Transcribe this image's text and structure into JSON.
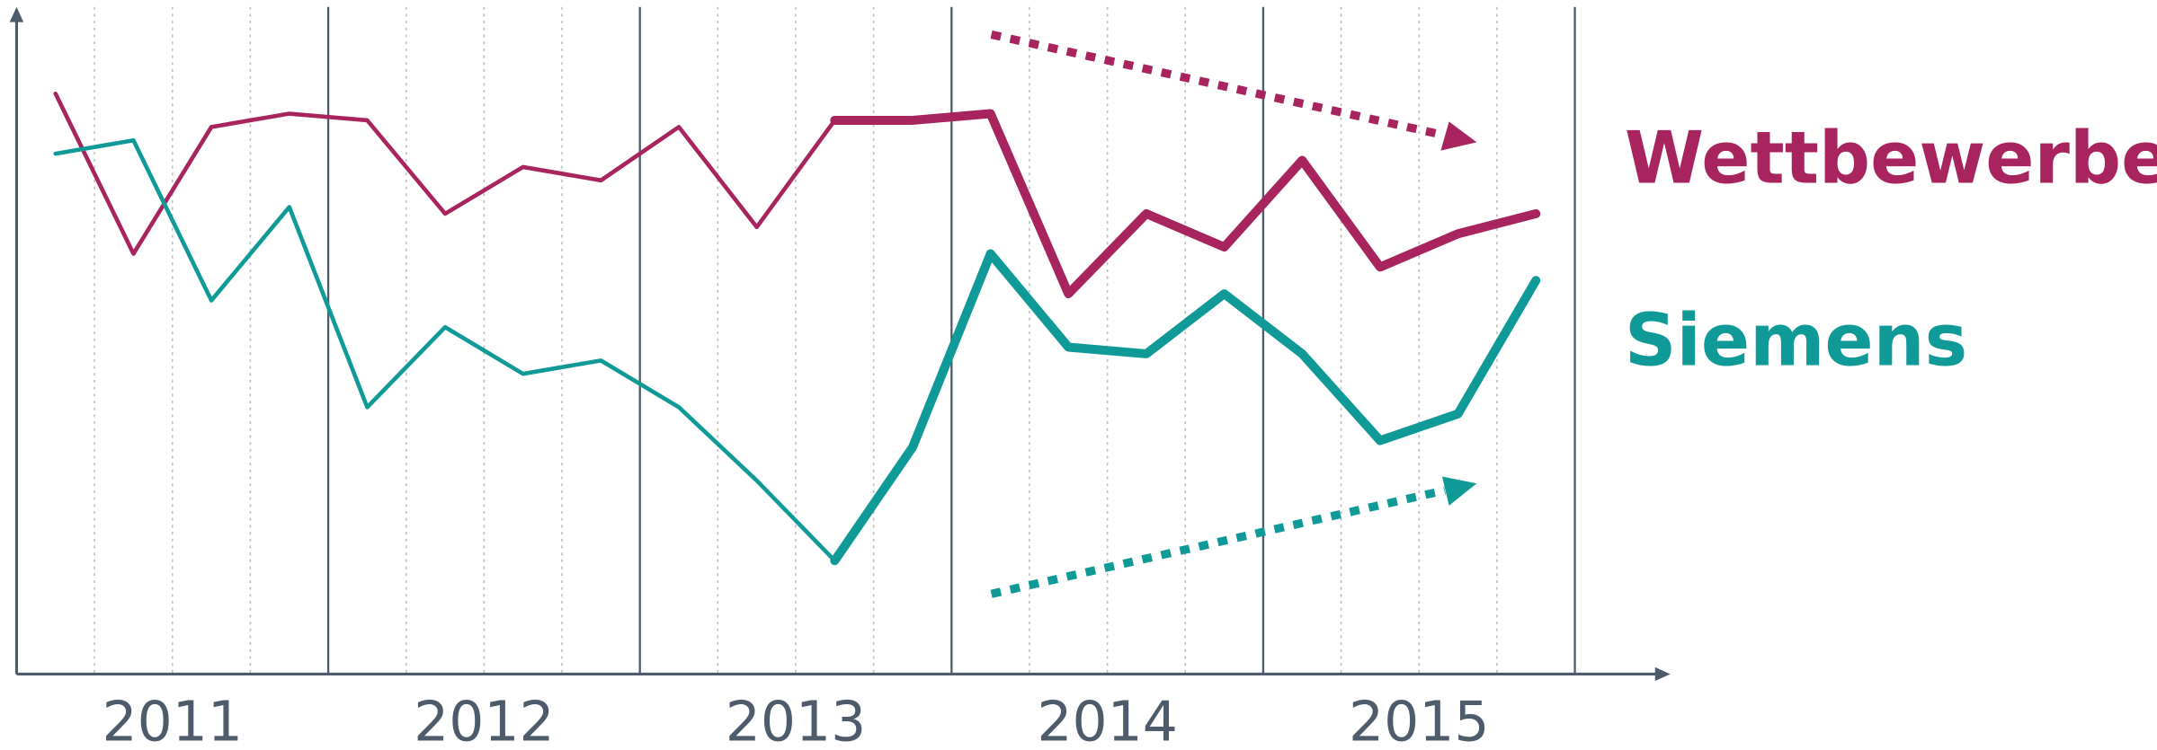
{
  "chart_data": {
    "type": "line",
    "x_groups": [
      "2011",
      "2012",
      "2013",
      "2014",
      "2015"
    ],
    "categories": [
      null,
      null,
      null,
      null,
      null,
      null,
      null,
      null,
      null,
      null,
      null,
      null,
      null,
      null,
      null,
      null,
      null,
      null,
      null,
      null
    ],
    "highlight_from": 10,
    "ylim": [
      0,
      100
    ],
    "series": [
      {
        "name": "Wettbewerber",
        "color": "#a8245f",
        "values": [
          87,
          63,
          82,
          84,
          83,
          69,
          76,
          74,
          82,
          67,
          83,
          83,
          84,
          57,
          69,
          64,
          77,
          61,
          66,
          69
        ]
      },
      {
        "name": "Siemens",
        "color": "#0f9a98",
        "values": [
          78,
          80,
          56,
          70,
          40,
          52,
          45,
          47,
          40,
          29,
          17,
          34,
          63,
          49,
          48,
          57,
          48,
          35,
          39,
          59
        ]
      }
    ]
  }
}
